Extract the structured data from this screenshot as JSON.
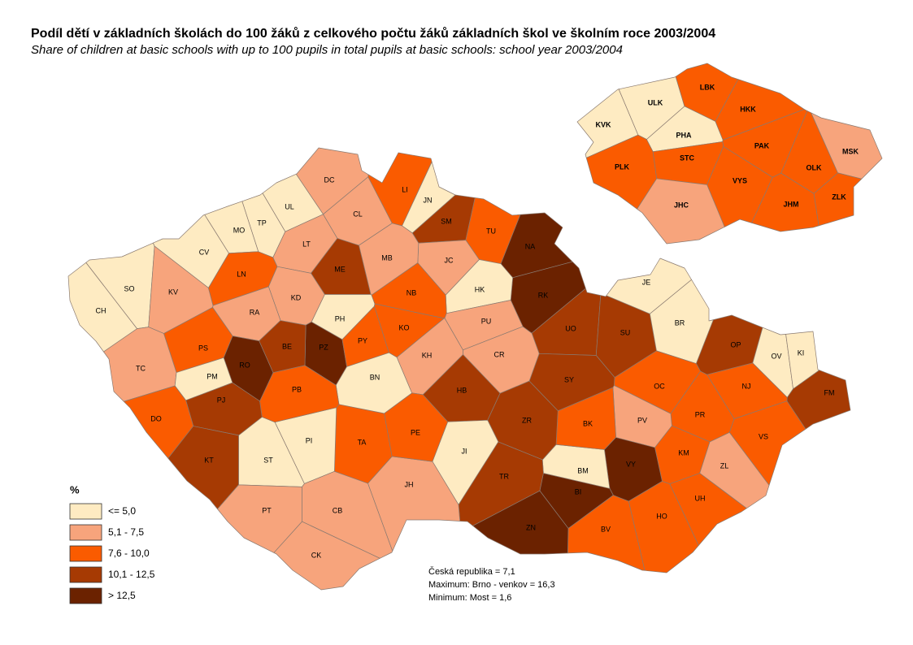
{
  "title": "Podíl dětí v základních školách do 100 žáků z celkového počtu žáků základních škol ve školním roce 2003/2004",
  "subtitle": "Share of children at basic schools with up to 100 pupils in total pupils at basic schools: school year 2003/2004",
  "legend": {
    "title": "%",
    "classes": [
      {
        "label": "<=  5,0",
        "color": "#feebc2"
      },
      {
        "label": "5,1 - 7,5",
        "color": "#f7a47c"
      },
      {
        "label": "7,6 - 10,0",
        "color": "#fa5b00"
      },
      {
        "label": "10,1 - 12,5",
        "color": "#a63a03"
      },
      {
        "label": "> 12,5",
        "color": "#6b2200"
      }
    ]
  },
  "districts": [
    {
      "label": "DC",
      "class": 1
    },
    {
      "label": "UL",
      "class": 0
    },
    {
      "label": "TP",
      "class": 0
    },
    {
      "label": "MO",
      "class": 0
    },
    {
      "label": "CV",
      "class": 0
    },
    {
      "label": "CH",
      "class": 0
    },
    {
      "label": "SO",
      "class": 0
    },
    {
      "label": "KV",
      "class": 1
    },
    {
      "label": "LN",
      "class": 2
    },
    {
      "label": "LT",
      "class": 1
    },
    {
      "label": "CL",
      "class": 1
    },
    {
      "label": "LI",
      "class": 2
    },
    {
      "label": "JN",
      "class": 0
    },
    {
      "label": "SM",
      "class": 3
    },
    {
      "label": "TU",
      "class": 2
    },
    {
      "label": "NA",
      "class": 4
    },
    {
      "label": "RK",
      "class": 4
    },
    {
      "label": "HK",
      "class": 0
    },
    {
      "label": "JC",
      "class": 1
    },
    {
      "label": "MB",
      "class": 1
    },
    {
      "label": "ME",
      "class": 3
    },
    {
      "label": "KD",
      "class": 1
    },
    {
      "label": "RA",
      "class": 1
    },
    {
      "label": "NB",
      "class": 2
    },
    {
      "label": "PH",
      "class": 0
    },
    {
      "label": "PZ",
      "class": 4
    },
    {
      "label": "BE",
      "class": 3
    },
    {
      "label": "PY",
      "class": 2
    },
    {
      "label": "KO",
      "class": 2
    },
    {
      "label": "PU",
      "class": 1
    },
    {
      "label": "UO",
      "class": 3
    },
    {
      "label": "SU",
      "class": 3
    },
    {
      "label": "BR",
      "class": 0
    },
    {
      "label": "JE",
      "class": 0
    },
    {
      "label": "OP",
      "class": 3
    },
    {
      "label": "OV",
      "class": 0
    },
    {
      "label": "KI",
      "class": 0
    },
    {
      "label": "FM",
      "class": 3
    },
    {
      "label": "NJ",
      "class": 2
    },
    {
      "label": "OC",
      "class": 2
    },
    {
      "label": "PR",
      "class": 2
    },
    {
      "label": "VS",
      "class": 2
    },
    {
      "label": "KM",
      "class": 2
    },
    {
      "label": "ZL",
      "class": 1
    },
    {
      "label": "UH",
      "class": 2
    },
    {
      "label": "HO",
      "class": 2
    },
    {
      "label": "BV",
      "class": 2
    },
    {
      "label": "VY",
      "class": 4
    },
    {
      "label": "BI",
      "class": 4
    },
    {
      "label": "BM",
      "class": 0
    },
    {
      "label": "PV",
      "class": 1
    },
    {
      "label": "BK",
      "class": 2
    },
    {
      "label": "SY",
      "class": 3
    },
    {
      "label": "CR",
      "class": 1
    },
    {
      "label": "KH",
      "class": 1
    },
    {
      "label": "HB",
      "class": 3
    },
    {
      "label": "ZR",
      "class": 3
    },
    {
      "label": "JI",
      "class": 0
    },
    {
      "label": "TR",
      "class": 3
    },
    {
      "label": "ZN",
      "class": 4
    },
    {
      "label": "JH",
      "class": 1
    },
    {
      "label": "PE",
      "class": 2
    },
    {
      "label": "TA",
      "class": 2
    },
    {
      "label": "PI",
      "class": 0
    },
    {
      "label": "ST",
      "class": 0
    },
    {
      "label": "BN",
      "class": 0
    },
    {
      "label": "PB",
      "class": 2
    },
    {
      "label": "PS",
      "class": 2
    },
    {
      "label": "TC",
      "class": 1
    },
    {
      "label": "PM",
      "class": 0
    },
    {
      "label": "RO",
      "class": 4
    },
    {
      "label": "PJ",
      "class": 3
    },
    {
      "label": "DO",
      "class": 2
    },
    {
      "label": "KT",
      "class": 3
    },
    {
      "label": "PT",
      "class": 1
    },
    {
      "label": "CB",
      "class": 1
    },
    {
      "label": "CK",
      "class": 1
    }
  ],
  "regions": [
    {
      "label": "ULK",
      "class": 0
    },
    {
      "label": "KVK",
      "class": 0
    },
    {
      "label": "LBK",
      "class": 2
    },
    {
      "label": "HKK",
      "class": 2
    },
    {
      "label": "PHA",
      "class": 0
    },
    {
      "label": "STC",
      "class": 2
    },
    {
      "label": "PAK",
      "class": 2
    },
    {
      "label": "PLK",
      "class": 2
    },
    {
      "label": "VYS",
      "class": 2
    },
    {
      "label": "OLK",
      "class": 2
    },
    {
      "label": "MSK",
      "class": 1
    },
    {
      "label": "JHC",
      "class": 1
    },
    {
      "label": "JHM",
      "class": 2
    },
    {
      "label": "ZLK",
      "class": 2
    }
  ],
  "stats": [
    "Česká republika = 7,1",
    "Maximum: Brno - venkov = 16,3",
    "Minimum: Most = 1,6"
  ]
}
